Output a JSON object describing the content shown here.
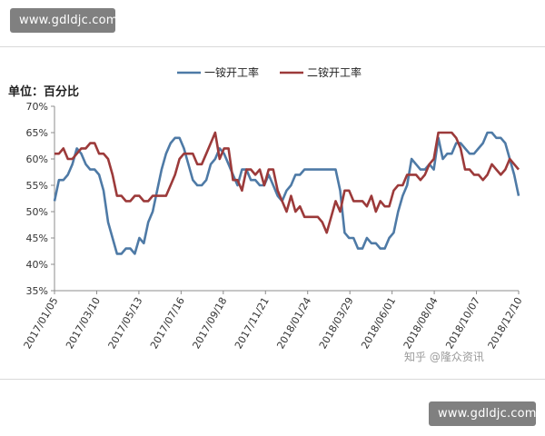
{
  "watermark_top": "www.gdldjc.com",
  "watermark_bottom": "www.gdldjc.com",
  "credit": "知乎 @隆众资讯",
  "chart_data": {
    "type": "line",
    "unit_label": "单位：百分比",
    "legend_position": "top",
    "ylim": [
      35,
      70
    ],
    "y_ticks": [
      "35%",
      "40%",
      "45%",
      "50%",
      "55%",
      "60%",
      "65%",
      "70%"
    ],
    "x_ticks": [
      "2017/01/05",
      "2017/03/10",
      "2017/05/13",
      "2017/07/16",
      "2017/09/18",
      "2017/11/21",
      "2018/01/24",
      "2018/03/29",
      "2018/06/01",
      "2018/08/04",
      "2018/10/07",
      "2018/12/10"
    ],
    "grid": false,
    "series": [
      {
        "name": "一铵开工率",
        "color": "#4e7aa6",
        "values": [
          52,
          56,
          56,
          57,
          59,
          62,
          61,
          59,
          58,
          58,
          57,
          54,
          48,
          45,
          42,
          42,
          43,
          43,
          42,
          45,
          44,
          48,
          50,
          54,
          58,
          61,
          63,
          64,
          64,
          62,
          59,
          56,
          55,
          55,
          56,
          59,
          60,
          62,
          61,
          59,
          57,
          55,
          58,
          58,
          56,
          56,
          55,
          55,
          57,
          55,
          53,
          52,
          54,
          55,
          57,
          57,
          58,
          58,
          58,
          58,
          58,
          58,
          58,
          58,
          54,
          46,
          45,
          45,
          43,
          43,
          45,
          44,
          44,
          43,
          43,
          45,
          46,
          50,
          53,
          55,
          60,
          59,
          58,
          58,
          59,
          58,
          64,
          60,
          61,
          61,
          63,
          63,
          62,
          61,
          61,
          62,
          63,
          65,
          65,
          64,
          64,
          63,
          60,
          57,
          53
        ]
      },
      {
        "name": "二铵开工率",
        "color": "#9c3a3a",
        "values": [
          61,
          61,
          62,
          60,
          60,
          61,
          62,
          62,
          63,
          63,
          61,
          61,
          60,
          57,
          53,
          53,
          52,
          52,
          53,
          53,
          52,
          52,
          53,
          53,
          53,
          53,
          55,
          57,
          60,
          61,
          61,
          61,
          59,
          59,
          61,
          63,
          65,
          60,
          62,
          62,
          56,
          56,
          54,
          58,
          58,
          57,
          58,
          55,
          58,
          58,
          54,
          52,
          50,
          53,
          50,
          51,
          49,
          49,
          49,
          49,
          48,
          46,
          49,
          52,
          50,
          54,
          54,
          52,
          52,
          52,
          51,
          53,
          50,
          52,
          51,
          51,
          54,
          55,
          55,
          57,
          57,
          57,
          56,
          57,
          59,
          60,
          65,
          65,
          65,
          65,
          64,
          62,
          58,
          58,
          57,
          57,
          56,
          57,
          59,
          58,
          57,
          58,
          60,
          59,
          58
        ]
      }
    ]
  }
}
